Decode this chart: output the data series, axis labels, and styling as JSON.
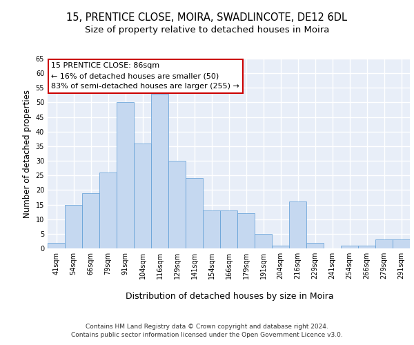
{
  "title1": "15, PRENTICE CLOSE, MOIRA, SWADLINCOTE, DE12 6DL",
  "title2": "Size of property relative to detached houses in Moira",
  "xlabel": "Distribution of detached houses by size in Moira",
  "ylabel": "Number of detached properties",
  "categories": [
    "41sqm",
    "54sqm",
    "66sqm",
    "79sqm",
    "91sqm",
    "104sqm",
    "116sqm",
    "129sqm",
    "141sqm",
    "154sqm",
    "166sqm",
    "179sqm",
    "191sqm",
    "204sqm",
    "216sqm",
    "229sqm",
    "241sqm",
    "254sqm",
    "266sqm",
    "279sqm",
    "291sqm"
  ],
  "values": [
    2,
    15,
    19,
    26,
    50,
    36,
    53,
    30,
    24,
    13,
    13,
    12,
    5,
    1,
    16,
    2,
    0,
    1,
    1,
    3,
    3
  ],
  "bar_color": "#c5d8f0",
  "bar_edgecolor": "#5b9bd5",
  "annotation_box_text": "15 PRENTICE CLOSE: 86sqm\n← 16% of detached houses are smaller (50)\n83% of semi-detached houses are larger (255) →",
  "annotation_box_color": "#ffffff",
  "annotation_box_edgecolor": "#cc0000",
  "ylim": [
    0,
    65
  ],
  "yticks": [
    0,
    5,
    10,
    15,
    20,
    25,
    30,
    35,
    40,
    45,
    50,
    55,
    60,
    65
  ],
  "footer_line1": "Contains HM Land Registry data © Crown copyright and database right 2024.",
  "footer_line2": "Contains public sector information licensed under the Open Government Licence v3.0.",
  "bg_color": "#e8eef8",
  "grid_color": "#ffffff",
  "title1_fontsize": 10.5,
  "title2_fontsize": 9.5,
  "tick_fontsize": 7,
  "ylabel_fontsize": 8.5,
  "xlabel_fontsize": 9,
  "footer_fontsize": 6.5,
  "annot_fontsize": 8
}
